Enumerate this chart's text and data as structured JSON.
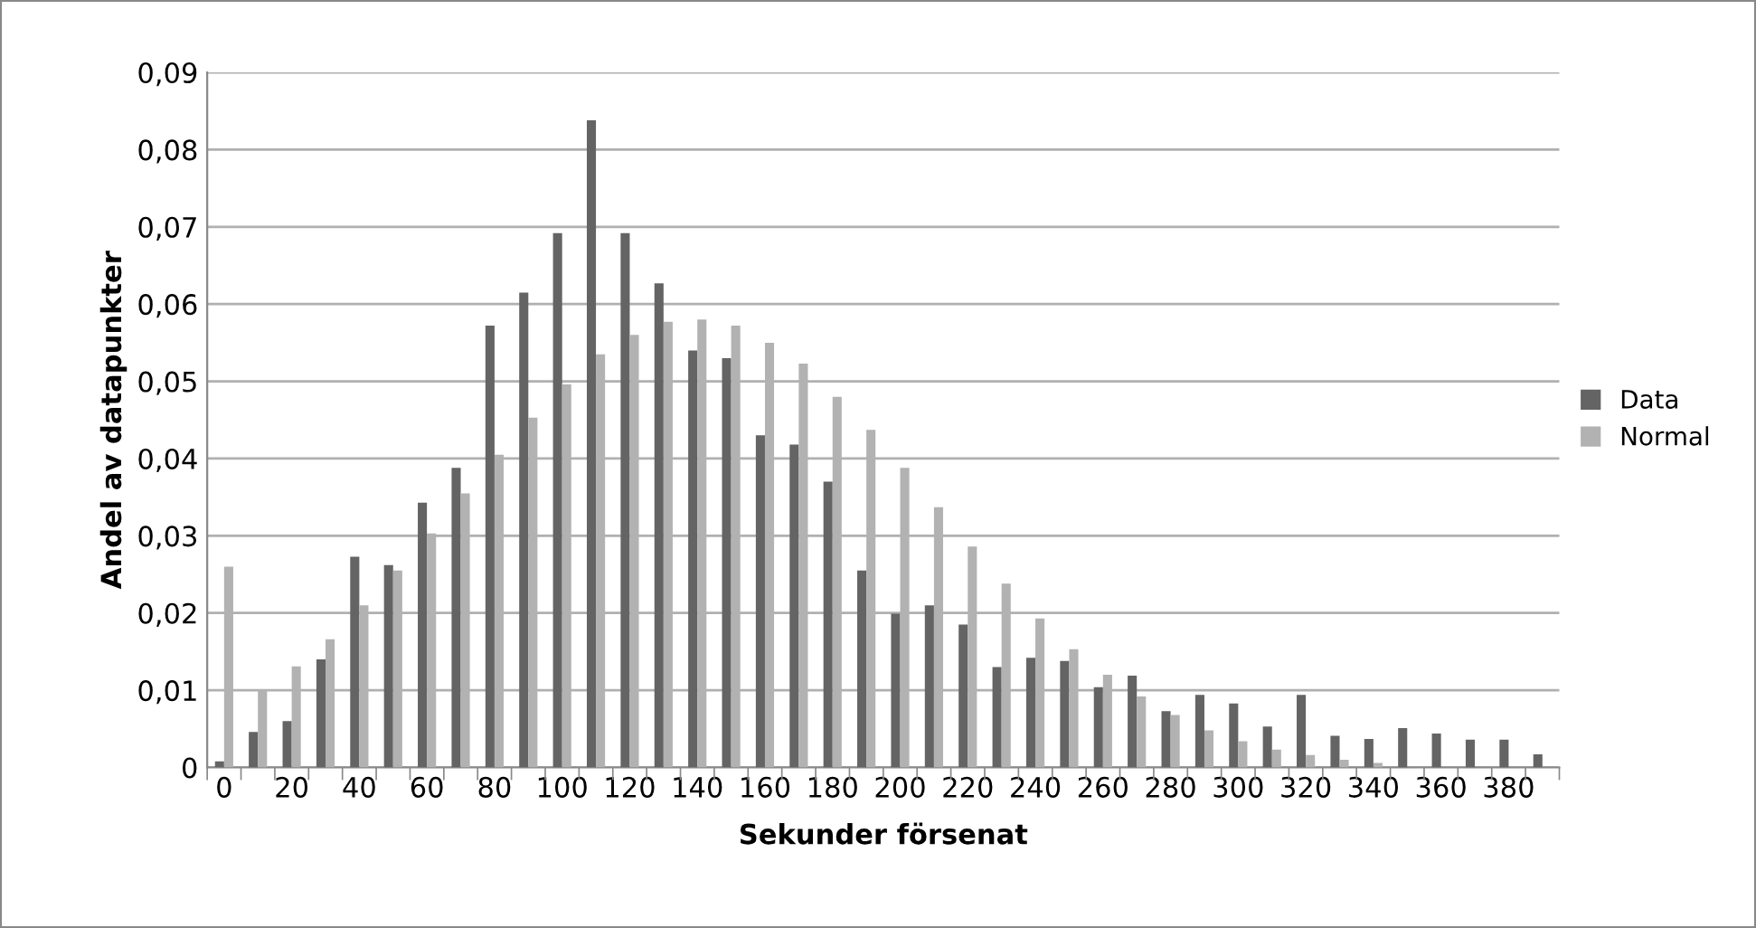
{
  "chart_data": {
    "type": "bar",
    "xlabel": "Sekunder försenat",
    "ylabel": "Andel av datapunkter",
    "categories": [
      "0",
      null,
      "20",
      null,
      "40",
      null,
      "60",
      null,
      "80",
      null,
      "100",
      null,
      "120",
      null,
      "140",
      null,
      "160",
      null,
      "180",
      null,
      "200",
      null,
      "220",
      null,
      "240",
      null,
      "260",
      null,
      "280",
      null,
      "300",
      null,
      "320",
      null,
      "340",
      null,
      "360",
      null,
      "380",
      null
    ],
    "series": [
      {
        "name": "Data",
        "color": "#646464",
        "values": [
          0.0008,
          0.0046,
          0.006,
          0.014,
          0.0273,
          0.0262,
          0.0343,
          0.0388,
          0.0572,
          0.0615,
          0.0692,
          0.0838,
          0.0692,
          0.0627,
          0.054,
          0.053,
          0.043,
          0.0418,
          0.037,
          0.0255,
          0.0199,
          0.021,
          0.0185,
          0.013,
          0.0142,
          0.0138,
          0.0104,
          0.0119,
          0.0073,
          0.0094,
          0.0083,
          0.0053,
          0.0094,
          0.0041,
          0.0037,
          0.0051,
          0.0044,
          0.0036,
          0.0036,
          0.0017
        ]
      },
      {
        "name": "Normal",
        "color": "#b2b2b2",
        "values": [
          0.026,
          0.0101,
          0.0131,
          0.0166,
          0.021,
          0.0255,
          0.0303,
          0.0355,
          0.0405,
          0.0453,
          0.0496,
          0.0535,
          0.056,
          0.0577,
          0.058,
          0.0572,
          0.055,
          0.0523,
          0.048,
          0.0437,
          0.0388,
          0.0337,
          0.0286,
          0.0238,
          0.0193,
          0.0153,
          0.012,
          0.0092,
          0.0068,
          0.0048,
          0.0034,
          0.0023,
          0.0016,
          0.001,
          0.0006,
          null,
          null,
          null,
          null,
          0
        ]
      }
    ],
    "ylim": [
      0,
      0.09
    ],
    "yticks": [
      {
        "value": 0,
        "label": "0"
      },
      {
        "value": 0.01,
        "label": "0,01"
      },
      {
        "value": 0.02,
        "label": "0,02"
      },
      {
        "value": 0.03,
        "label": "0,03"
      },
      {
        "value": 0.04,
        "label": "0,04"
      },
      {
        "value": 0.05,
        "label": "0,05"
      },
      {
        "value": 0.06,
        "label": "0,06"
      },
      {
        "value": 0.07,
        "label": "0,07"
      },
      {
        "value": 0.08,
        "label": "0,08"
      },
      {
        "value": 0.09,
        "label": "0,09"
      }
    ],
    "grid": "y",
    "legend": "right"
  }
}
